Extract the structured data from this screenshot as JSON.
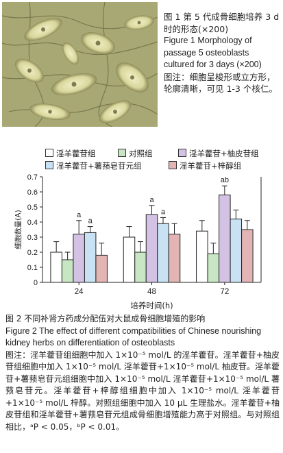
{
  "figure1": {
    "title_zh": "图 1 第 5 代成骨细胞培养 3 d 时的形态(×200)",
    "title_en": "Figure 1 Morphology of passage 5 osteoblasts cultured for 3 days (×200)",
    "note": "图注：细胞呈梭形或立方形，轮廓清晰，可见 1-3 个核仁。"
  },
  "figure2": {
    "title_zh": "图 2 不同补肾方药成分配伍对大鼠成骨细胞增殖的影响",
    "title_en": "Figure 2 The effect of different compatibilities of Chinese nourishing kidney herbs on differentiation of osteoblasts",
    "note": "图注：淫羊藿苷组细胞中加入 1×10⁻⁵ mol/L 的淫羊藿苷。淫羊藿苷+柚皮苷组细胞中加入 1×10⁻⁵ mol/L 淫羊藿苷+1×10⁻⁵ mol/L 柚皮苷。淫羊藿苷+薯蓣皂苷元组细胞中加入 1×10⁻⁵ mol/L 淫羊藿苷+1×10⁻⁵ mol/L 薯蓣皂苷元。淫羊藿苷+梓醇组细胞中加入 1×10⁻⁵ mol/L 淫羊藿苷+1×10⁻⁵ mol/L 梓醇。对照组细胞中加入 10 μL 生理盐水。淫羊藿苷+柚皮苷组和淫羊藿苷+薯蓣皂苷元组成骨细胞增殖能力高于对照组。与对照组相比，ᵃP < 0.05，ᵇP < 0.01。"
  },
  "chart_data": {
    "type": "bar",
    "categories": [
      "24",
      "48",
      "72"
    ],
    "xlabel": "培养时间(h)",
    "ylabel": "细胞数量(A)",
    "ylim": [
      0,
      0.7
    ],
    "yticks": [
      "0",
      "0.1",
      "0.2",
      "0.3",
      "0.4",
      "0.5",
      "0.6",
      "0.7"
    ],
    "series": [
      {
        "name": "淫羊藿苷组",
        "color": "#ffffff",
        "values": [
          0.2,
          0.3,
          0.34
        ],
        "errors": [
          0.07,
          0.07,
          0.07
        ],
        "sig": [
          "",
          "",
          ""
        ]
      },
      {
        "name": "对照组",
        "color": "#c8e6c4",
        "values": [
          0.15,
          0.2,
          0.19
        ],
        "errors": [
          0.05,
          0.07,
          0.07
        ],
        "sig": [
          "",
          "",
          ""
        ]
      },
      {
        "name": "淫羊藿苷+柚皮苷组",
        "color": "#d3c2e3",
        "values": [
          0.32,
          0.45,
          0.58
        ],
        "errors": [
          0.09,
          0.06,
          0.06
        ],
        "sig": [
          "a",
          "a",
          "ab"
        ]
      },
      {
        "name": "淫羊藿苷+薯蓣皂苷元组",
        "color": "#c8e2f4",
        "values": [
          0.33,
          0.39,
          0.42
        ],
        "errors": [
          0.04,
          0.04,
          0.06
        ],
        "sig": [
          "a",
          "a",
          ""
        ]
      },
      {
        "name": "淫羊藿苷+梓醇组",
        "color": "#e2b4b4",
        "values": [
          0.18,
          0.32,
          0.35
        ],
        "errors": [
          0.08,
          0.07,
          0.06
        ],
        "sig": [
          "",
          "",
          ""
        ]
      }
    ]
  }
}
